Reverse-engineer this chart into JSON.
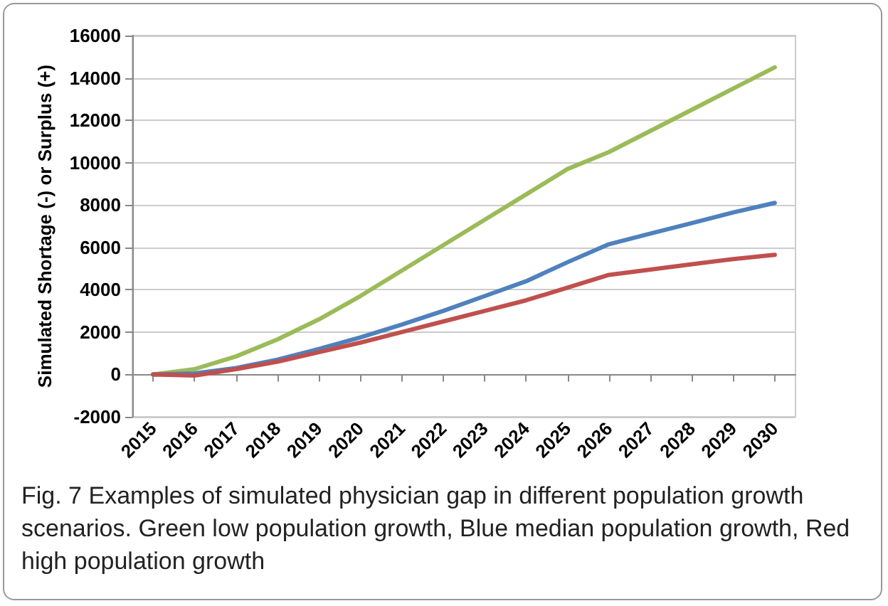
{
  "chart_data": {
    "type": "line",
    "ylabel": "Simulated Shortage (-) or Surplus (+)",
    "categories": [
      "2015",
      "2016",
      "2017",
      "2018",
      "2019",
      "2020",
      "2021",
      "2022",
      "2023",
      "2024",
      "2025",
      "2026",
      "2027",
      "2028",
      "2029",
      "2030"
    ],
    "series": [
      {
        "color": "#9bbb59",
        "values": [
          0,
          250,
          850,
          1650,
          2600,
          3700,
          4900,
          6100,
          7300,
          8500,
          9700,
          10500,
          11500,
          12500,
          13500,
          14500
        ]
      },
      {
        "color": "#4f81bd",
        "values": [
          0,
          50,
          300,
          700,
          1200,
          1750,
          2350,
          3000,
          3700,
          4400,
          5300,
          6150,
          6650,
          7150,
          7650,
          8100
        ]
      },
      {
        "color": "#c0504d",
        "values": [
          0,
          -50,
          250,
          600,
          1050,
          1500,
          2000,
          2500,
          3000,
          3500,
          4100,
          4700,
          4950,
          5200,
          5450,
          5650
        ]
      }
    ],
    "ylim": [
      -2000,
      16000
    ],
    "yticks": [
      -2000,
      0,
      2000,
      4000,
      6000,
      8000,
      10000,
      12000,
      14000,
      16000
    ],
    "grid": "y",
    "legend": false,
    "marker": "none",
    "line_style": "solid",
    "annotations": [
      "Fig. 7 Examples of simulated physician gap in different population growth scenarios. Green low population growth, Blue median population growth, Red high population growth"
    ]
  }
}
